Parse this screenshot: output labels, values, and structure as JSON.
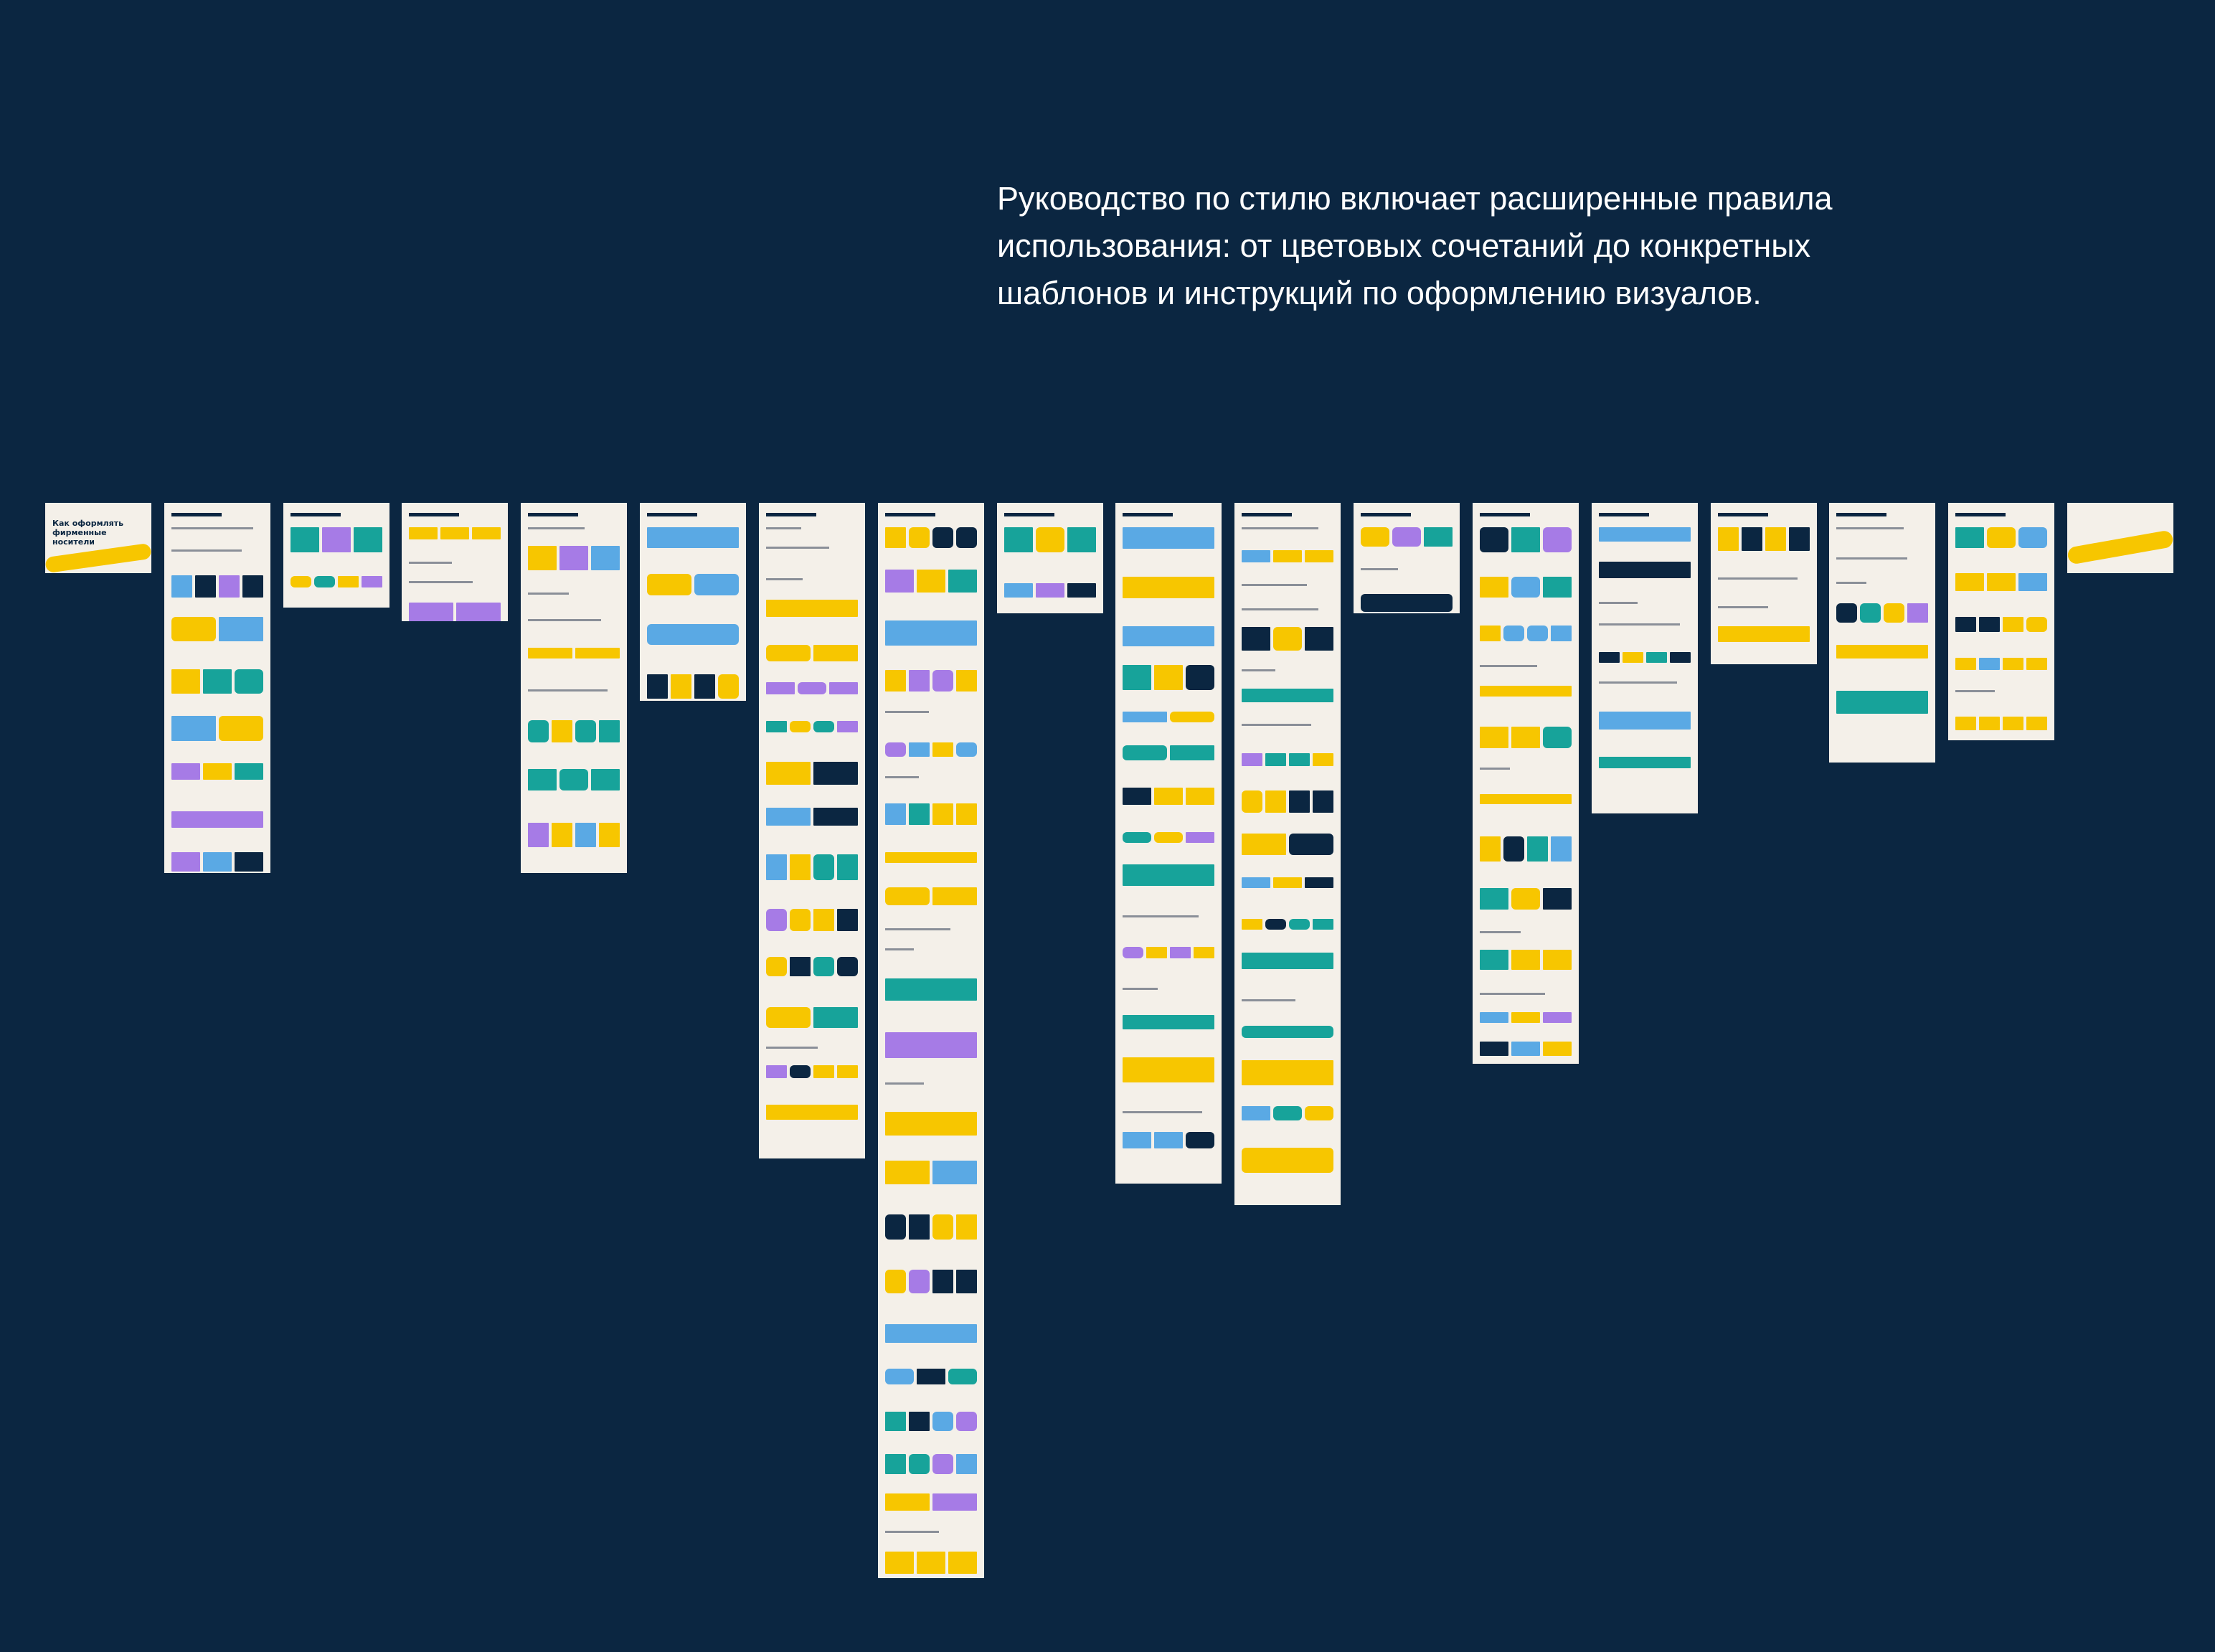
{
  "intro": {
    "lines": [
      "Руководство по стилю включает расширенные правила",
      "использования: от цветовых сочетаний до конкретных",
      "шаблонов и инструкций по оформлению визуалов."
    ]
  },
  "first_sheet": {
    "title": "Как оформлять фирменные носители"
  }
}
